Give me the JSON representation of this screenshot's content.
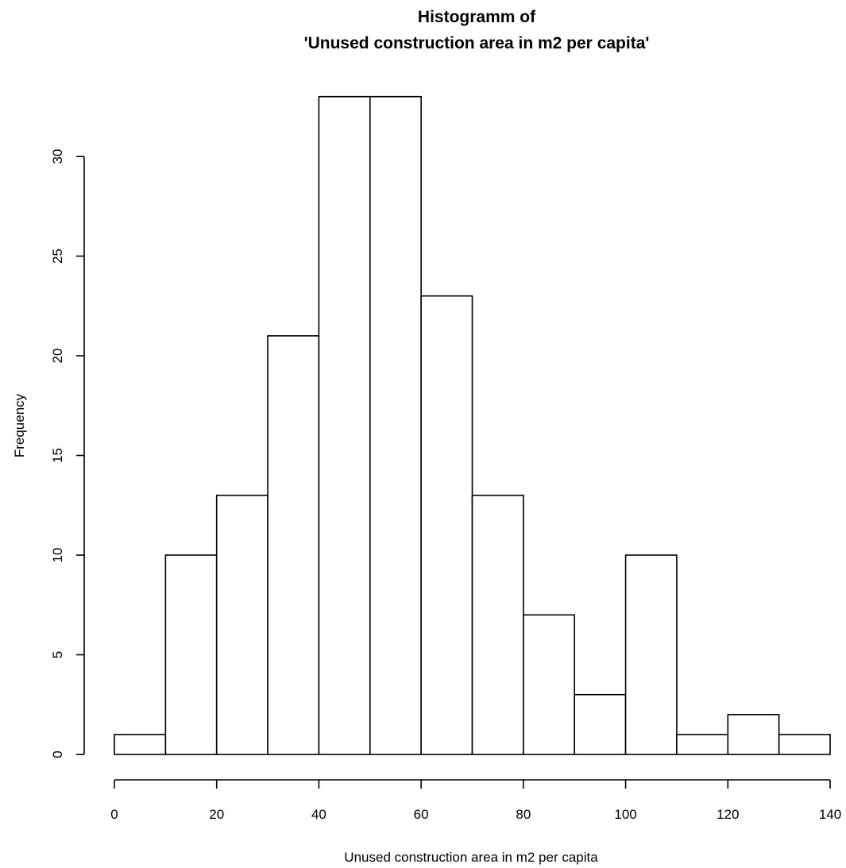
{
  "chart_data": {
    "type": "bar",
    "title_line1": "Histogramm of",
    "title_line2": "'Unused construction area in m2 per capita'",
    "xlabel": "Unused construction area in m2 per capita",
    "ylabel": "Frequency",
    "bins": [
      {
        "from": 0,
        "to": 10,
        "count": 1
      },
      {
        "from": 10,
        "to": 20,
        "count": 10
      },
      {
        "from": 20,
        "to": 30,
        "count": 13
      },
      {
        "from": 30,
        "to": 40,
        "count": 21
      },
      {
        "from": 40,
        "to": 50,
        "count": 33
      },
      {
        "from": 50,
        "to": 60,
        "count": 33
      },
      {
        "from": 60,
        "to": 70,
        "count": 23
      },
      {
        "from": 70,
        "to": 80,
        "count": 13
      },
      {
        "from": 80,
        "to": 90,
        "count": 7
      },
      {
        "from": 90,
        "to": 100,
        "count": 3
      },
      {
        "from": 100,
        "to": 110,
        "count": 10
      },
      {
        "from": 110,
        "to": 120,
        "count": 1
      },
      {
        "from": 120,
        "to": 130,
        "count": 2
      },
      {
        "from": 130,
        "to": 140,
        "count": 1
      }
    ],
    "xlim": [
      0,
      140
    ],
    "ylim": [
      0,
      33
    ],
    "x_ticks": [
      0,
      20,
      40,
      60,
      80,
      100,
      120,
      140
    ],
    "y_ticks": [
      0,
      5,
      10,
      15,
      20,
      25,
      30
    ],
    "grid": false,
    "legend": "none"
  }
}
